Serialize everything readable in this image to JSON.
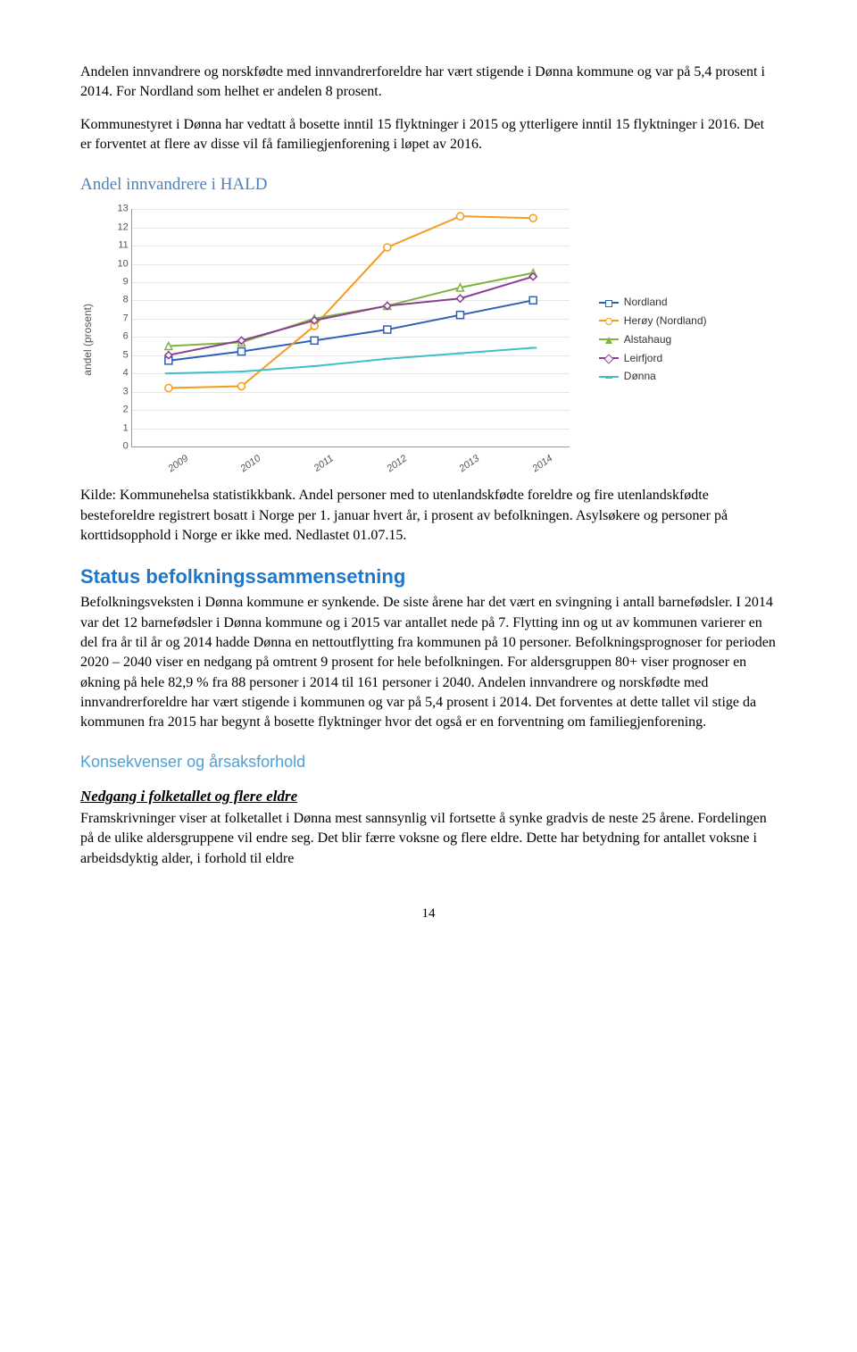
{
  "para1": "Andelen innvandrere og norskfødte med innvandrerforeldre har vært stigende i Dønna kommune og var på 5,4 prosent i 2014. For Nordland som helhet er andelen 8 prosent.",
  "para2": "Kommunestyret i Dønna har vedtatt å bosette inntil 15 flyktninger i 2015 og ytterligere inntil 15 flyktninger i 2016. Det er forventet at flere av disse vil få familiegjenforening i løpet av 2016.",
  "chart_heading": "Andel innvandrere i HALD",
  "caption": "Kilde: Kommunehelsa statistikkbank. Andel personer med to utenlandskfødte foreldre og fire utenlandskfødte besteforeldre registrert bosatt i Norge per 1. januar hvert år, i prosent av befolkningen. Asylsøkere og personer på korttidsopphold i Norge er ikke med. Nedlastet 01.07.15.",
  "section_title": "Status befolkningssammensetning",
  "para3": "Befolkningsveksten i Dønna kommune er synkende. De siste årene har det vært en svingning i antall barnefødsler. I 2014 var det 12 barnefødsler i Dønna kommune og i 2015 var antallet nede på 7. Flytting inn og ut av kommunen varierer en del fra år til år og 2014 hadde Dønna en nettoutflytting fra kommunen på 10 personer.  Befolkningsprognoser for perioden 2020 – 2040 viser en nedgang på omtrent 9 prosent for hele befolkningen. For aldersgruppen 80+ viser prognoser en økning på hele 82,9 % fra 88 personer i 2014 til 161 personer i 2040. Andelen innvandrere og norskfødte med innvandrerforeldre har vært stigende i kommunen og var på 5,4 prosent i 2014. Det forventes at dette tallet vil stige da kommunen fra 2015 har begynt å bosette flyktninger hvor det også er en forventning om familiegjenforening.",
  "sub_heading": "Konsekvenser og årsaksforhold",
  "italic_heading": "Nedgang i folketallet og flere eldre",
  "para4": "Framskrivninger viser at folketallet i Dønna mest sannsynlig vil fortsette å synke gradvis de neste 25 årene. Fordelingen på de ulike aldersgruppene vil endre seg. Det blir færre voksne og flere eldre. Dette har betydning for antallet voksne i arbeidsdyktig alder, i forhold til eldre",
  "page_num": "14",
  "chart": {
    "type": "line",
    "ylabel": "andel (prosent)",
    "ylim": [
      0,
      13
    ],
    "ytick_step": 1,
    "x_categories": [
      "2009",
      "2010",
      "2011",
      "2012",
      "2013",
      "2014"
    ],
    "grid_color": "#e6e6e6",
    "axis_color": "#999",
    "series": [
      {
        "name": "Nordland",
        "color": "#2f5fb5",
        "marker": "square",
        "values": [
          4.7,
          5.2,
          5.8,
          6.4,
          7.2,
          8.0
        ]
      },
      {
        "name": "Herøy (Nordland)",
        "color": "#f59b1d",
        "marker": "circle",
        "values": [
          3.2,
          3.3,
          6.6,
          10.9,
          12.6,
          12.5
        ]
      },
      {
        "name": "Alstahaug",
        "color": "#7eb33d",
        "marker": "triangle",
        "values": [
          5.5,
          5.7,
          7.0,
          7.7,
          8.7,
          9.5
        ]
      },
      {
        "name": "Leirfjord",
        "color": "#8a3e94",
        "marker": "diamond",
        "values": [
          5.0,
          5.8,
          6.9,
          7.7,
          8.1,
          9.3
        ]
      },
      {
        "name": "Dønna",
        "color": "#3fc0c8",
        "marker": "dash",
        "values": [
          4.0,
          4.1,
          4.4,
          4.8,
          5.1,
          5.4
        ]
      }
    ]
  }
}
